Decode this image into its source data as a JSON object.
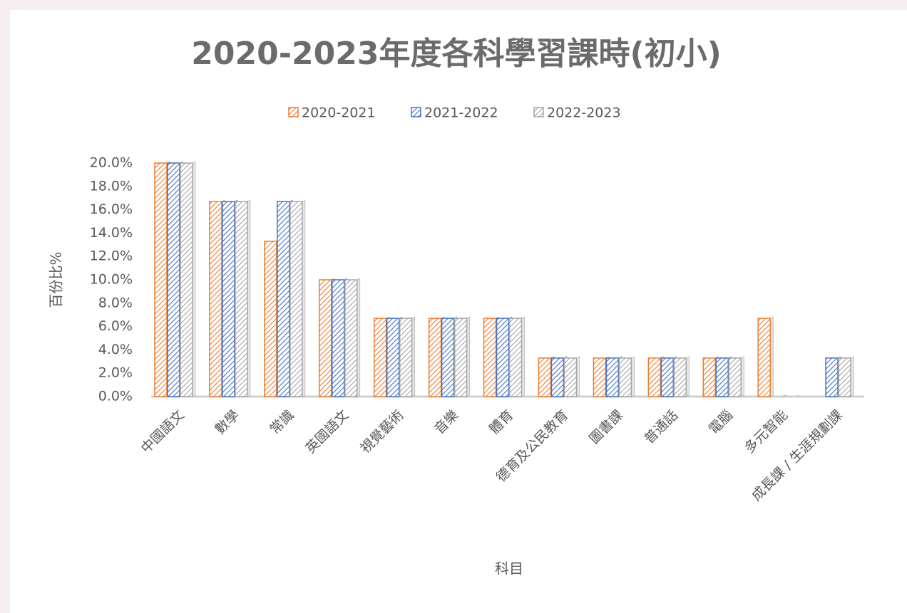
{
  "chart_data": {
    "type": "bar",
    "title": "2020-2023年度各科學習課時(初小)",
    "x_label": "科目",
    "y_label": "百份比%",
    "categories": [
      "中國語文",
      "數學",
      "常識",
      "英國語文",
      "視覺藝術",
      "音樂",
      "體育",
      "德育及公民教育",
      "圖書課",
      "普通話",
      "電腦",
      "多元智能",
      "成長課 / 生涯規劃課"
    ],
    "series": [
      {
        "name": "2020-2021",
        "color": "#ed7d31",
        "values": [
          20,
          16.7,
          13.3,
          10,
          6.7,
          6.7,
          6.7,
          3.3,
          3.3,
          3.3,
          3.3,
          6.7,
          0
        ]
      },
      {
        "name": "2021-2022",
        "color": "#4472c4",
        "values": [
          20,
          16.7,
          16.7,
          10,
          6.7,
          6.7,
          6.7,
          3.3,
          3.3,
          3.3,
          3.3,
          0,
          3.3
        ]
      },
      {
        "name": "2022-2023",
        "color": "#a5a5a5",
        "values": [
          20,
          16.7,
          16.7,
          10,
          6.7,
          6.7,
          6.7,
          3.3,
          3.3,
          3.3,
          3.3,
          0,
          3.3
        ]
      }
    ],
    "ylim": [
      0,
      20
    ],
    "yticks": [
      {
        "value": 0,
        "label": "0.0%"
      },
      {
        "value": 2,
        "label": "2.0%"
      },
      {
        "value": 4,
        "label": "4.0%"
      },
      {
        "value": 6,
        "label": "6.0%"
      },
      {
        "value": 8,
        "label": "8.0%"
      },
      {
        "value": 10,
        "label": "10.0%"
      },
      {
        "value": 12,
        "label": "12.0%"
      },
      {
        "value": 14,
        "label": "14.0%"
      },
      {
        "value": 16,
        "label": "16.0%"
      },
      {
        "value": 18,
        "label": "18.0%"
      },
      {
        "value": 20,
        "label": "20.0%"
      }
    ],
    "legend": "top"
  }
}
